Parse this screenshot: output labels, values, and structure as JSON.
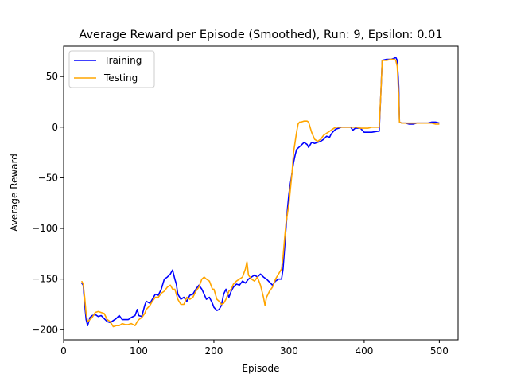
{
  "chart_data": {
    "type": "line",
    "title": "Average Reward per Episode (Smoothed), Run: 9, Epsilon: 0.01",
    "xlabel": "Episode",
    "ylabel": "Average Reward",
    "xlim": [
      0,
      525
    ],
    "ylim": [
      -210,
      80
    ],
    "xticks": [
      0,
      100,
      200,
      300,
      400,
      500
    ],
    "yticks": [
      50,
      0,
      -50,
      -100,
      -150,
      -200
    ],
    "ytick_labels": [
      "50",
      "0",
      "−50",
      "−100",
      "−150",
      "−200"
    ],
    "grid": false,
    "legend": "top-left",
    "series": [
      {
        "name": "Training",
        "color": "#0000ff",
        "points": [
          [
            24,
            -154
          ],
          [
            26,
            -156
          ],
          [
            28,
            -175
          ],
          [
            30,
            -190
          ],
          [
            32,
            -196
          ],
          [
            35,
            -188
          ],
          [
            38,
            -186
          ],
          [
            42,
            -185
          ],
          [
            46,
            -187
          ],
          [
            50,
            -186
          ],
          [
            54,
            -189
          ],
          [
            58,
            -192
          ],
          [
            62,
            -193
          ],
          [
            66,
            -191
          ],
          [
            70,
            -189
          ],
          [
            74,
            -186
          ],
          [
            78,
            -190
          ],
          [
            82,
            -190
          ],
          [
            86,
            -190
          ],
          [
            90,
            -188
          ],
          [
            95,
            -186
          ],
          [
            98,
            -180
          ],
          [
            100,
            -186
          ],
          [
            104,
            -187
          ],
          [
            108,
            -176
          ],
          [
            110,
            -172
          ],
          [
            115,
            -174
          ],
          [
            118,
            -170
          ],
          [
            122,
            -165
          ],
          [
            126,
            -166
          ],
          [
            130,
            -160
          ],
          [
            134,
            -150
          ],
          [
            138,
            -148
          ],
          [
            142,
            -145
          ],
          [
            145,
            -141
          ],
          [
            148,
            -150
          ],
          [
            150,
            -155
          ],
          [
            152,
            -165
          ],
          [
            156,
            -170
          ],
          [
            160,
            -168
          ],
          [
            164,
            -172
          ],
          [
            168,
            -166
          ],
          [
            172,
            -165
          ],
          [
            176,
            -160
          ],
          [
            180,
            -156
          ],
          [
            184,
            -160
          ],
          [
            187,
            -165
          ],
          [
            190,
            -170
          ],
          [
            194,
            -168
          ],
          [
            198,
            -174
          ],
          [
            200,
            -178
          ],
          [
            204,
            -181
          ],
          [
            207,
            -180
          ],
          [
            210,
            -176
          ],
          [
            213,
            -165
          ],
          [
            216,
            -160
          ],
          [
            220,
            -168
          ],
          [
            223,
            -162
          ],
          [
            226,
            -158
          ],
          [
            230,
            -155
          ],
          [
            234,
            -156
          ],
          [
            238,
            -152
          ],
          [
            242,
            -154
          ],
          [
            246,
            -150
          ],
          [
            250,
            -148
          ],
          [
            254,
            -146
          ],
          [
            258,
            -148
          ],
          [
            262,
            -145
          ],
          [
            266,
            -148
          ],
          [
            270,
            -150
          ],
          [
            274,
            -153
          ],
          [
            278,
            -156
          ],
          [
            282,
            -152
          ],
          [
            286,
            -150
          ],
          [
            290,
            -150
          ],
          [
            292,
            -140
          ],
          [
            294,
            -120
          ],
          [
            296,
            -100
          ],
          [
            298,
            -80
          ],
          [
            300,
            -65
          ],
          [
            302,
            -55
          ],
          [
            304,
            -45
          ],
          [
            306,
            -35
          ],
          [
            308,
            -28
          ],
          [
            310,
            -22
          ],
          [
            313,
            -20
          ],
          [
            316,
            -18
          ],
          [
            320,
            -15
          ],
          [
            324,
            -17
          ],
          [
            326,
            -20
          ],
          [
            330,
            -15
          ],
          [
            334,
            -16
          ],
          [
            338,
            -15
          ],
          [
            342,
            -14
          ],
          [
            346,
            -12
          ],
          [
            350,
            -9
          ],
          [
            354,
            -10
          ],
          [
            356,
            -7
          ],
          [
            358,
            -5
          ],
          [
            362,
            -2
          ],
          [
            366,
            -1
          ],
          [
            370,
            0
          ],
          [
            374,
            0
          ],
          [
            378,
            0
          ],
          [
            382,
            0
          ],
          [
            385,
            -3
          ],
          [
            388,
            -1
          ],
          [
            392,
            -1
          ],
          [
            395,
            -1
          ],
          [
            400,
            -5
          ],
          [
            410,
            -5
          ],
          [
            418,
            -4
          ],
          [
            420,
            -4
          ],
          [
            422,
            30
          ],
          [
            424,
            66
          ],
          [
            430,
            67
          ],
          [
            436,
            67
          ],
          [
            440,
            68
          ],
          [
            442,
            69
          ],
          [
            444,
            66
          ],
          [
            446,
            40
          ],
          [
            447,
            5
          ],
          [
            450,
            4
          ],
          [
            455,
            4
          ],
          [
            460,
            3
          ],
          [
            465,
            3
          ],
          [
            470,
            4
          ],
          [
            475,
            4
          ],
          [
            480,
            4
          ],
          [
            485,
            4
          ],
          [
            490,
            5
          ],
          [
            495,
            5
          ],
          [
            500,
            4
          ]
        ]
      },
      {
        "name": "Testing",
        "color": "#ffa500",
        "points": [
          [
            24,
            -152
          ],
          [
            26,
            -155
          ],
          [
            28,
            -168
          ],
          [
            30,
            -184
          ],
          [
            32,
            -192
          ],
          [
            35,
            -190
          ],
          [
            38,
            -188
          ],
          [
            42,
            -183
          ],
          [
            46,
            -182
          ],
          [
            50,
            -183
          ],
          [
            54,
            -184
          ],
          [
            58,
            -190
          ],
          [
            62,
            -192
          ],
          [
            66,
            -197
          ],
          [
            70,
            -196
          ],
          [
            74,
            -196
          ],
          [
            78,
            -194
          ],
          [
            82,
            -195
          ],
          [
            86,
            -195
          ],
          [
            90,
            -194
          ],
          [
            95,
            -196
          ],
          [
            98,
            -192
          ],
          [
            100,
            -190
          ],
          [
            104,
            -188
          ],
          [
            108,
            -184
          ],
          [
            110,
            -180
          ],
          [
            115,
            -176
          ],
          [
            118,
            -172
          ],
          [
            122,
            -168
          ],
          [
            126,
            -168
          ],
          [
            130,
            -164
          ],
          [
            134,
            -162
          ],
          [
            138,
            -158
          ],
          [
            142,
            -156
          ],
          [
            145,
            -160
          ],
          [
            148,
            -160
          ],
          [
            150,
            -165
          ],
          [
            152,
            -170
          ],
          [
            156,
            -175
          ],
          [
            160,
            -175
          ],
          [
            164,
            -168
          ],
          [
            168,
            -170
          ],
          [
            172,
            -168
          ],
          [
            176,
            -162
          ],
          [
            180,
            -158
          ],
          [
            184,
            -150
          ],
          [
            187,
            -148
          ],
          [
            190,
            -150
          ],
          [
            194,
            -152
          ],
          [
            198,
            -160
          ],
          [
            200,
            -160
          ],
          [
            204,
            -170
          ],
          [
            207,
            -172
          ],
          [
            210,
            -175
          ],
          [
            213,
            -174
          ],
          [
            216,
            -170
          ],
          [
            220,
            -162
          ],
          [
            223,
            -160
          ],
          [
            226,
            -155
          ],
          [
            230,
            -152
          ],
          [
            234,
            -150
          ],
          [
            238,
            -148
          ],
          [
            242,
            -140
          ],
          [
            244,
            -133
          ],
          [
            246,
            -146
          ],
          [
            250,
            -150
          ],
          [
            254,
            -152
          ],
          [
            258,
            -148
          ],
          [
            262,
            -156
          ],
          [
            266,
            -168
          ],
          [
            268,
            -176
          ],
          [
            270,
            -168
          ],
          [
            274,
            -162
          ],
          [
            278,
            -158
          ],
          [
            282,
            -150
          ],
          [
            286,
            -145
          ],
          [
            290,
            -140
          ],
          [
            292,
            -128
          ],
          [
            294,
            -110
          ],
          [
            296,
            -95
          ],
          [
            298,
            -85
          ],
          [
            300,
            -75
          ],
          [
            302,
            -60
          ],
          [
            304,
            -45
          ],
          [
            306,
            -25
          ],
          [
            308,
            -15
          ],
          [
            310,
            -5
          ],
          [
            312,
            3
          ],
          [
            314,
            5
          ],
          [
            316,
            5
          ],
          [
            320,
            6
          ],
          [
            324,
            6
          ],
          [
            326,
            5
          ],
          [
            328,
            0
          ],
          [
            330,
            -5
          ],
          [
            334,
            -12
          ],
          [
            338,
            -14
          ],
          [
            342,
            -12
          ],
          [
            346,
            -8
          ],
          [
            350,
            -6
          ],
          [
            354,
            -4
          ],
          [
            358,
            -2
          ],
          [
            362,
            0
          ],
          [
            366,
            0
          ],
          [
            370,
            0
          ],
          [
            374,
            0
          ],
          [
            378,
            0
          ],
          [
            382,
            0
          ],
          [
            386,
            0
          ],
          [
            390,
            0
          ],
          [
            394,
            -1
          ],
          [
            400,
            -1
          ],
          [
            405,
            -1
          ],
          [
            410,
            0
          ],
          [
            415,
            0
          ],
          [
            418,
            0
          ],
          [
            420,
            0
          ],
          [
            422,
            30
          ],
          [
            424,
            66
          ],
          [
            430,
            66
          ],
          [
            436,
            67
          ],
          [
            440,
            67
          ],
          [
            442,
            66
          ],
          [
            444,
            60
          ],
          [
            446,
            30
          ],
          [
            447,
            5
          ],
          [
            450,
            4
          ],
          [
            455,
            4
          ],
          [
            460,
            4
          ],
          [
            465,
            4
          ],
          [
            470,
            4
          ],
          [
            475,
            4
          ],
          [
            480,
            4
          ],
          [
            485,
            4
          ],
          [
            490,
            4
          ],
          [
            495,
            3
          ],
          [
            500,
            3
          ]
        ]
      }
    ]
  }
}
